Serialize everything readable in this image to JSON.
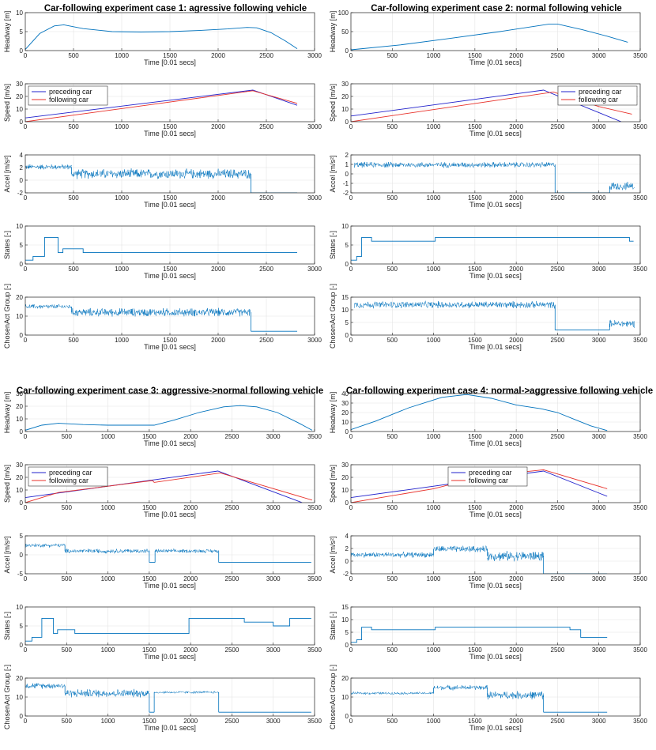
{
  "colors": {
    "blue": "#0072bd",
    "dark_blue": "#2222cc",
    "red": "#e8312a",
    "axis": "#262626"
  },
  "chart_data": [
    {
      "case": 1,
      "title": "Car-following experiment case 1: agressive following vehicle",
      "xlabel": "Time [0.01 secs]",
      "xlim": [
        0,
        3000
      ],
      "xticks": [
        0,
        500,
        1000,
        1500,
        2000,
        2500,
        3000
      ],
      "subplots": [
        {
          "type": "line",
          "ylabel": "Headway [m]",
          "ylim": [
            0,
            10
          ],
          "yticks": [
            0,
            5,
            10
          ],
          "series": [
            {
              "color": "blue",
              "x": [
                0,
                150,
                300,
                400,
                600,
                900,
                1200,
                1500,
                1800,
                2100,
                2300,
                2400,
                2550,
                2700,
                2820
              ],
              "y": [
                0.3,
                4.5,
                6.5,
                6.8,
                5.8,
                5.0,
                4.9,
                5.0,
                5.3,
                5.7,
                6.1,
                6.0,
                4.7,
                2.5,
                0.5
              ]
            }
          ]
        },
        {
          "type": "line",
          "ylabel": "Speed [m/s]",
          "ylim": [
            0,
            30
          ],
          "yticks": [
            0,
            10,
            20,
            30
          ],
          "legend": {
            "position": "top-left",
            "entries": [
              {
                "name": "preceding car",
                "color": "dark_blue"
              },
              {
                "name": "following car",
                "color": "red"
              }
            ]
          },
          "series": [
            {
              "name": "preceding car",
              "color": "dark_blue",
              "x": [
                0,
                2360,
                2820
              ],
              "y": [
                3,
                25,
                13
              ]
            },
            {
              "name": "following car",
              "color": "red",
              "x": [
                0,
                2360,
                2820
              ],
              "y": [
                0,
                24.5,
                14.5
              ]
            }
          ]
        },
        {
          "type": "noise",
          "ylabel": "Accel [m/s²]",
          "ylim": [
            -2,
            4
          ],
          "yticks": [
            -2,
            0,
            2,
            4
          ],
          "floor": -2,
          "segments": [
            [
              0,
              480,
              2.1,
              0.5
            ],
            [
              480,
              2340,
              1.0,
              0.9
            ]
          ],
          "after": [
            [
              2340,
              2820,
              -2
            ]
          ]
        },
        {
          "type": "step",
          "ylabel": "States [-]",
          "ylim": [
            0,
            10
          ],
          "yticks": [
            0,
            5,
            10
          ],
          "series": [
            {
              "color": "blue",
              "x": [
                0,
                80,
                80,
                200,
                200,
                340,
                340,
                390,
                390,
                600,
                600,
                2820
              ],
              "y": [
                1,
                1,
                2,
                2,
                7,
                7,
                3,
                3,
                4,
                4,
                3,
                3
              ]
            }
          ]
        },
        {
          "type": "noise",
          "ylabel": "ChosenAct Group [-]",
          "ylim": [
            0,
            20
          ],
          "yticks": [
            0,
            10,
            20
          ],
          "floor": 0,
          "segments": [
            [
              0,
              480,
              15,
              1.5
            ],
            [
              480,
              2340,
              12,
              2.5
            ]
          ],
          "after": [
            [
              2340,
              2820,
              2
            ]
          ]
        }
      ]
    },
    {
      "case": 2,
      "title": "Car-following experiment case 2: normal following vehicle",
      "xlabel": "Time [0.01 secs]",
      "xlim": [
        0,
        3500
      ],
      "xticks": [
        0,
        500,
        1000,
        1500,
        2000,
        2500,
        3000,
        3500
      ],
      "subplots": [
        {
          "type": "line",
          "ylabel": "Headway [m]",
          "ylim": [
            0,
            100
          ],
          "yticks": [
            0,
            50,
            100
          ],
          "series": [
            {
              "color": "blue",
              "x": [
                0,
                600,
                1200,
                1800,
                2400,
                2500,
                2800,
                3100,
                3350
              ],
              "y": [
                2,
                15,
                32,
                50,
                70,
                70,
                55,
                38,
                22
              ]
            }
          ]
        },
        {
          "type": "line",
          "ylabel": "Speed [m/s]",
          "ylim": [
            0,
            30
          ],
          "yticks": [
            0,
            10,
            20,
            30
          ],
          "legend": {
            "position": "top-right",
            "entries": [
              {
                "name": "preceding car",
                "color": "dark_blue"
              },
              {
                "name": "following car",
                "color": "red"
              }
            ]
          },
          "series": [
            {
              "name": "preceding car",
              "color": "dark_blue",
              "x": [
                0,
                2330,
                3270
              ],
              "y": [
                4.5,
                25,
                0
              ]
            },
            {
              "name": "following car",
              "color": "red",
              "x": [
                0,
                2450,
                3000,
                3400
              ],
              "y": [
                0,
                23.5,
                12,
                6
              ]
            }
          ]
        },
        {
          "type": "noise",
          "ylabel": "Accel [m/s²]",
          "ylim": [
            -2,
            2
          ],
          "yticks": [
            -2,
            -1,
            0,
            1,
            2
          ],
          "floor": -2,
          "segments": [
            [
              40,
              2470,
              0.95,
              0.35
            ],
            [
              3130,
              3430,
              -1.3,
              0.5
            ]
          ],
          "after": [
            [
              2470,
              3130,
              -2
            ]
          ]
        },
        {
          "type": "step",
          "ylabel": "States [-]",
          "ylim": [
            0,
            10
          ],
          "yticks": [
            0,
            5,
            10
          ],
          "series": [
            {
              "color": "blue",
              "x": [
                0,
                70,
                70,
                130,
                130,
                250,
                250,
                1020,
                1020,
                3370,
                3370,
                3420
              ],
              "y": [
                1,
                1,
                2,
                2,
                7,
                7,
                6,
                6,
                7,
                7,
                6,
                6
              ]
            }
          ]
        },
        {
          "type": "noise",
          "ylabel": "ChosenAct Group [-]",
          "ylim": [
            0,
            15
          ],
          "yticks": [
            0,
            5,
            10,
            15
          ],
          "floor": 0,
          "segments": [
            [
              40,
              2470,
              12,
              1.6
            ],
            [
              3130,
              3430,
              4.5,
              1.8
            ]
          ],
          "after": [
            [
              2470,
              3130,
              2
            ]
          ]
        }
      ]
    },
    {
      "case": 3,
      "title": "Car-following experiment case 3: aggressive->normal following vehicle",
      "xlabel": "Time [0.01 secs]",
      "xlim": [
        0,
        3500
      ],
      "xticks": [
        0,
        500,
        1000,
        1500,
        2000,
        2500,
        3000,
        3500
      ],
      "subplots": [
        {
          "type": "line",
          "ylabel": "Headway [m]",
          "ylim": [
            0,
            30
          ],
          "yticks": [
            0,
            10,
            20,
            30
          ],
          "series": [
            {
              "color": "blue",
              "x": [
                0,
                200,
                400,
                700,
                1000,
                1300,
                1560,
                1800,
                2100,
                2400,
                2600,
                2800,
                3050,
                3300,
                3470
              ],
              "y": [
                1,
                5,
                6.5,
                5.5,
                5,
                5,
                5,
                9,
                15,
                19.5,
                20.5,
                19.5,
                15,
                7,
                1
              ]
            }
          ]
        },
        {
          "type": "line",
          "ylabel": "Speed [m/s]",
          "ylim": [
            0,
            30
          ],
          "yticks": [
            0,
            10,
            20,
            30
          ],
          "legend": {
            "position": "top-left",
            "entries": [
              {
                "name": "preceding car",
                "color": "dark_blue"
              },
              {
                "name": "following car",
                "color": "red"
              }
            ]
          },
          "series": [
            {
              "name": "preceding car",
              "color": "dark_blue",
              "x": [
                0,
                2330,
                3350
              ],
              "y": [
                4,
                25,
                0
              ]
            },
            {
              "name": "following car",
              "color": "red",
              "x": [
                0,
                400,
                1540,
                1560,
                2360,
                3470
              ],
              "y": [
                0,
                8,
                17.5,
                16,
                23.5,
                2
              ]
            }
          ]
        },
        {
          "type": "noise",
          "ylabel": "Accel [m/s²]",
          "ylim": [
            -5,
            5
          ],
          "yticks": [
            -5,
            0,
            5
          ],
          "floor": -5,
          "segments": [
            [
              0,
              480,
              2.5,
              0.6
            ],
            [
              480,
              1500,
              1.0,
              0.7
            ],
            [
              1570,
              2340,
              1.0,
              0.6
            ]
          ],
          "after": [
            [
              1500,
              1570,
              -2
            ],
            [
              2340,
              3460,
              -2
            ]
          ]
        },
        {
          "type": "step",
          "ylabel": "States [-]",
          "ylim": [
            0,
            10
          ],
          "yticks": [
            0,
            5,
            10
          ],
          "series": [
            {
              "color": "blue",
              "x": [
                0,
                80,
                80,
                200,
                200,
                340,
                340,
                390,
                390,
                600,
                600,
                1980,
                1980,
                2650,
                2650,
                3000,
                3000,
                3200,
                3200,
                3460
              ],
              "y": [
                1,
                1,
                2,
                2,
                7,
                7,
                3,
                3,
                4,
                4,
                3,
                3,
                7,
                7,
                6,
                6,
                5,
                5,
                7,
                7
              ]
            }
          ]
        },
        {
          "type": "noise",
          "ylabel": "ChosenAct Group [-]",
          "ylim": [
            0,
            20
          ],
          "yticks": [
            0,
            10,
            20
          ],
          "floor": 0,
          "segments": [
            [
              0,
              480,
              16,
              1.8
            ],
            [
              480,
              1500,
              12,
              2.5
            ],
            [
              1560,
              2340,
              12.5,
              0.8
            ]
          ],
          "after": [
            [
              1500,
              1560,
              2
            ],
            [
              2340,
              3460,
              2
            ]
          ]
        }
      ]
    },
    {
      "case": 4,
      "title": "Car-following experiment case 4: normal->aggressive following vehicle",
      "xlabel": "Time [0.01 secs]",
      "xlim": [
        0,
        3500
      ],
      "xticks": [
        0,
        500,
        1000,
        1500,
        2000,
        2500,
        3000,
        3500
      ],
      "subplots": [
        {
          "type": "line",
          "ylabel": "Headway [m]",
          "ylim": [
            0,
            40
          ],
          "yticks": [
            0,
            10,
            20,
            30,
            40
          ],
          "series": [
            {
              "color": "blue",
              "x": [
                0,
                300,
                700,
                1100,
                1400,
                1700,
                2000,
                2300,
                2500,
                2700,
                2900,
                3100
              ],
              "y": [
                2,
                11,
                25,
                36,
                39,
                35,
                28,
                24,
                20,
                13,
                6,
                1
              ]
            }
          ]
        },
        {
          "type": "line",
          "ylabel": "Speed [m/s]",
          "ylim": [
            0,
            30
          ],
          "yticks": [
            0,
            10,
            20,
            30
          ],
          "legend": {
            "position": "top-center",
            "entries": [
              {
                "name": "preceding car",
                "color": "dark_blue"
              },
              {
                "name": "following car",
                "color": "red"
              }
            ]
          },
          "series": [
            {
              "name": "preceding car",
              "color": "dark_blue",
              "x": [
                0,
                2330,
                3100
              ],
              "y": [
                4,
                25,
                5
              ]
            },
            {
              "name": "following car",
              "color": "red",
              "x": [
                0,
                1000,
                1600,
                2330,
                3100
              ],
              "y": [
                0,
                11,
                21,
                26,
                11
              ]
            }
          ]
        },
        {
          "type": "noise",
          "ylabel": "Accel [m/s²]",
          "ylim": [
            -2,
            4
          ],
          "yticks": [
            -2,
            0,
            2,
            4
          ],
          "floor": -2,
          "segments": [
            [
              0,
              1000,
              1.0,
              0.5
            ],
            [
              1000,
              1650,
              1.9,
              0.6
            ],
            [
              1650,
              2330,
              0.8,
              0.9
            ]
          ],
          "after": [
            [
              2330,
              3100,
              -2
            ]
          ]
        },
        {
          "type": "step",
          "ylabel": "States [-]",
          "ylim": [
            0,
            15
          ],
          "yticks": [
            0,
            5,
            10,
            15
          ],
          "series": [
            {
              "color": "blue",
              "x": [
                0,
                70,
                70,
                130,
                130,
                250,
                250,
                1020,
                1020,
                2650,
                2650,
                2780,
                2780,
                3100
              ],
              "y": [
                1,
                1,
                2,
                2,
                7,
                7,
                6,
                6,
                7,
                7,
                6,
                6,
                3,
                3
              ]
            }
          ]
        },
        {
          "type": "noise",
          "ylabel": "ChosenAct Group [-]",
          "ylim": [
            0,
            20
          ],
          "yticks": [
            0,
            10,
            20
          ],
          "floor": 0,
          "segments": [
            [
              0,
              1000,
              12,
              0.8
            ],
            [
              1000,
              1650,
              15,
              1.5
            ],
            [
              1650,
              2330,
              11,
              2.5
            ]
          ],
          "after": [
            [
              2330,
              3100,
              2
            ]
          ]
        }
      ]
    }
  ]
}
